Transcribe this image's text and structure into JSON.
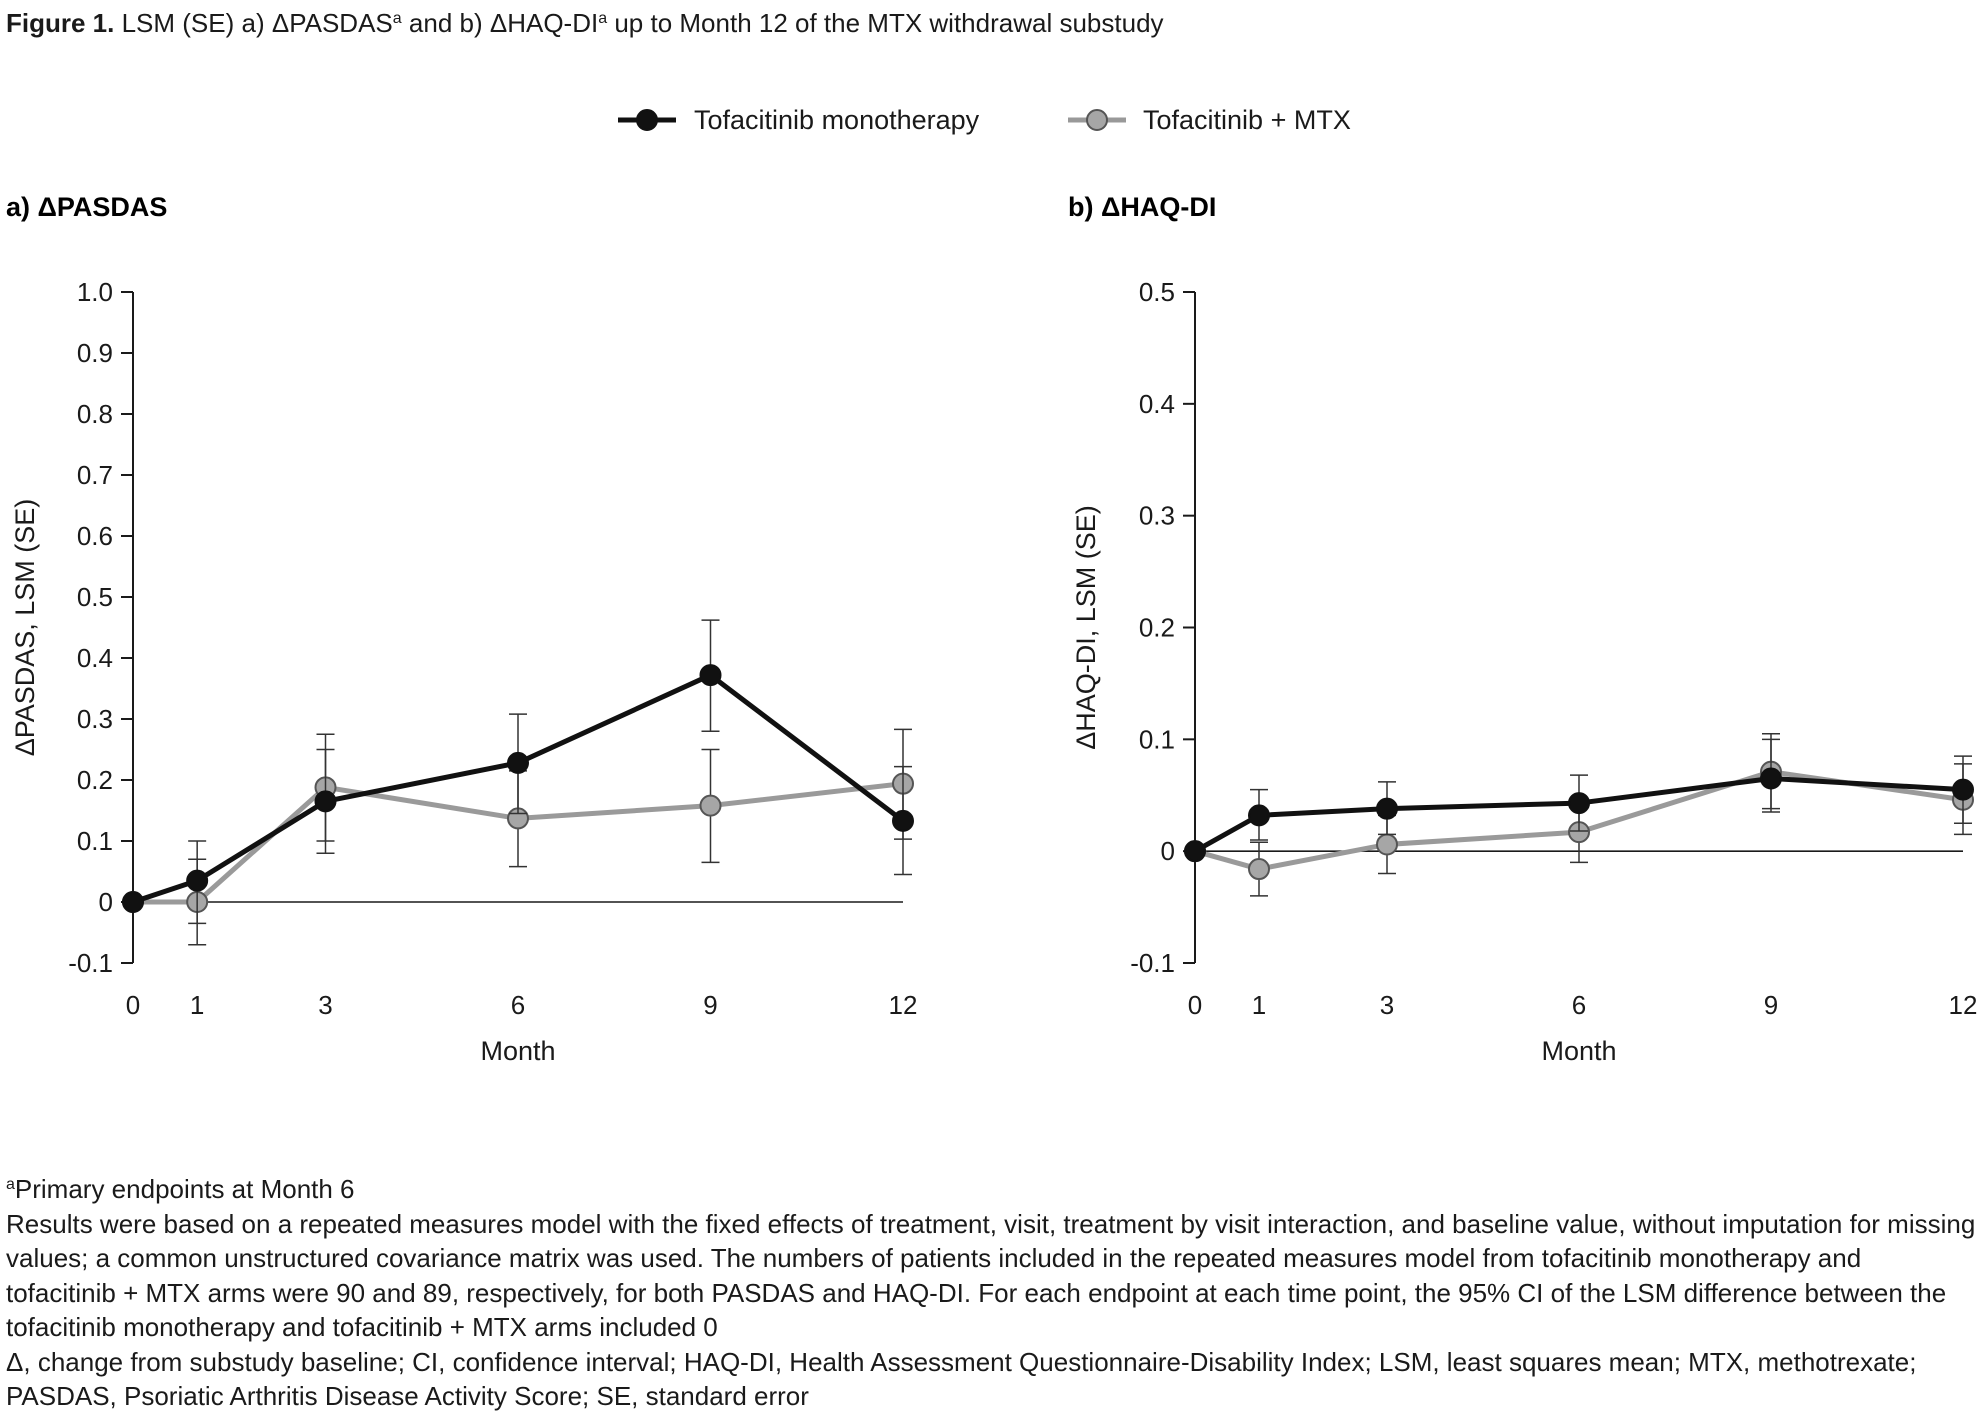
{
  "figure": {
    "title_bold": "Figure 1.",
    "title_rest": " LSM (SE) a) ΔPASDAS",
    "title_sup1": "a",
    "title_mid": " and b) ΔHAQ-DI",
    "title_sup2": "a",
    "title_end": " up to Month 12 of the MTX withdrawal substudy"
  },
  "legend": {
    "placement": "top-center",
    "items": [
      {
        "label": "Tofacitinib monotherapy",
        "color": "#111111",
        "marker_fill": "#111111"
      },
      {
        "label": "Tofacitinib + MTX",
        "color": "#999999",
        "marker_fill": "#a6a6a6"
      }
    ]
  },
  "chart_data": [
    {
      "type": "line",
      "panel_title": "a) ΔPASDAS",
      "xlabel": "Month",
      "ylabel": "ΔPASDAS, LSM (SE)",
      "x": [
        0,
        1,
        3,
        6,
        9,
        12
      ],
      "x_ticks": [
        "0",
        "1",
        "3",
        "6",
        "9",
        "12"
      ],
      "y_ticks": [
        "1.0",
        "0.9",
        "0.8",
        "0.7",
        "0.6",
        "0.5",
        "0.4",
        "0.3",
        "0.2",
        "0.1",
        "0",
        "-0.1"
      ],
      "ylim": [
        -0.1,
        1.0
      ],
      "grid": false,
      "reference_line": 0,
      "series": [
        {
          "name": "Tofacitinib monotherapy",
          "values": [
            0,
            0.035,
            0.165,
            0.228,
            0.372,
            0.133
          ],
          "error_low": [
            0,
            -0.035,
            0.08,
            0.145,
            0.28,
            0.045
          ],
          "error_high": [
            0,
            0.1,
            0.25,
            0.308,
            0.462,
            0.222
          ]
        },
        {
          "name": "Tofacitinib + MTX",
          "values": [
            0,
            0,
            0.188,
            0.137,
            0.158,
            0.194
          ],
          "error_low": [
            0,
            -0.07,
            0.1,
            0.058,
            0.065,
            0.103
          ],
          "error_high": [
            0,
            0.07,
            0.275,
            0.215,
            0.25,
            0.283
          ]
        }
      ]
    },
    {
      "type": "line",
      "panel_title": "b) ΔHAQ-DI",
      "xlabel": "Month",
      "ylabel": "ΔHAQ-DI, LSM (SE)",
      "x": [
        0,
        1,
        3,
        6,
        9,
        12
      ],
      "x_ticks": [
        "0",
        "1",
        "3",
        "6",
        "9",
        "12"
      ],
      "y_ticks": [
        "0.5",
        "0.4",
        "0.3",
        "0.2",
        "0.1",
        "0",
        "-0.1"
      ],
      "ylim": [
        -0.1,
        0.5
      ],
      "grid": false,
      "reference_line": 0,
      "series": [
        {
          "name": "Tofacitinib monotherapy",
          "values": [
            0,
            0.032,
            0.038,
            0.043,
            0.065,
            0.055
          ],
          "error_low": [
            0,
            0.01,
            0.015,
            0.018,
            0.038,
            0.025
          ],
          "error_high": [
            0,
            0.055,
            0.062,
            0.068,
            0.1,
            0.085
          ]
        },
        {
          "name": "Tofacitinib + MTX",
          "values": [
            0,
            -0.016,
            0.006,
            0.017,
            0.071,
            0.046
          ],
          "error_low": [
            0,
            -0.04,
            -0.02,
            -0.01,
            0.035,
            0.015
          ],
          "error_high": [
            0,
            0.008,
            0.032,
            0.045,
            0.105,
            0.078
          ]
        }
      ]
    }
  ],
  "footnotes": {
    "line1_sup": "a",
    "line1": "Primary endpoints at Month 6",
    "line2": "Results were based on a repeated measures model with the fixed effects of treatment, visit, treatment by visit interaction, and baseline value, without imputation for missing values; a common unstructured covariance matrix was used. The numbers of patients included in the repeated measures model from tofacitinib monotherapy and tofacitinib + MTX arms were 90 and 89, respectively, for both PASDAS and HAQ-DI. For each endpoint at each time point, the 95% CI of the LSM difference between the tofacitinib monotherapy and tofacitinib + MTX arms included 0",
    "line3": "Δ, change from substudy baseline; CI, confidence interval; HAQ-DI, Health Assessment Questionnaire-Disability Index; LSM, least squares mean; MTX, methotrexate; PASDAS, Psoriatic Arthritis Disease Activity Score; SE, standard error"
  }
}
